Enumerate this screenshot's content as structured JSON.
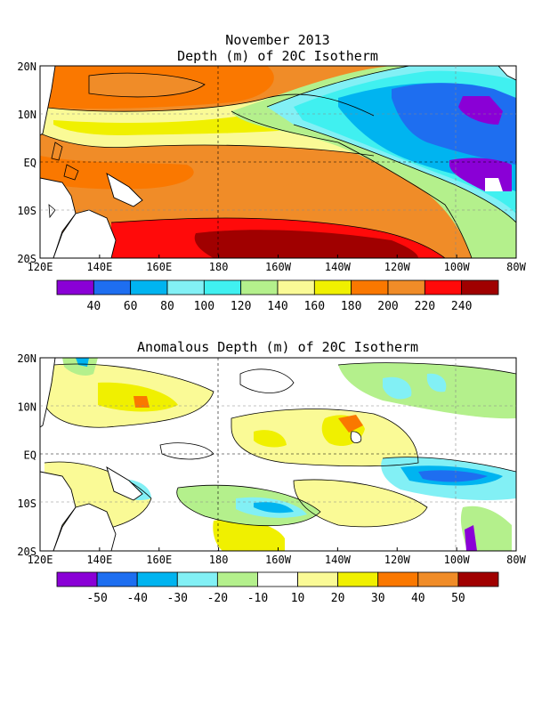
{
  "top_panel": {
    "title_line1": "November 2013",
    "title_line2": "Depth (m) of 20C Isotherm",
    "lat_labels": [
      "20N",
      "10N",
      "EQ",
      "10S",
      "20S"
    ],
    "lon_labels": [
      "120E",
      "140E",
      "160E",
      "180",
      "160W",
      "140W",
      "120W",
      "100W",
      "80W"
    ],
    "colorbar": {
      "colors": [
        "#8a00d6",
        "#1e6ef0",
        "#00b4f0",
        "#82f0f5",
        "#40f0f0",
        "#b4f08c",
        "#fafa96",
        "#f0f000",
        "#fa7800",
        "#f08c28",
        "#ff0a0a",
        "#a00000"
      ],
      "labels": [
        "40",
        "60",
        "80",
        "100",
        "120",
        "140",
        "160",
        "180",
        "200",
        "220",
        "240"
      ]
    }
  },
  "bottom_panel": {
    "title": "Anomalous Depth (m) of 20C Isotherm",
    "lat_labels": [
      "20N",
      "10N",
      "EQ",
      "10S",
      "20S"
    ],
    "lon_labels": [
      "120E",
      "140E",
      "160E",
      "180",
      "160W",
      "140W",
      "120W",
      "100W",
      "80W"
    ],
    "colorbar": {
      "colors": [
        "#8a00d6",
        "#1e6ef0",
        "#00b4f0",
        "#82f0f5",
        "#b4f08c",
        "#ffffff",
        "#fafa96",
        "#f0f000",
        "#fa7800",
        "#f08c28",
        "#a00000"
      ],
      "labels": [
        "-50",
        "-40",
        "-30",
        "-20",
        "-10",
        "10",
        "20",
        "30",
        "40",
        "50"
      ]
    }
  }
}
